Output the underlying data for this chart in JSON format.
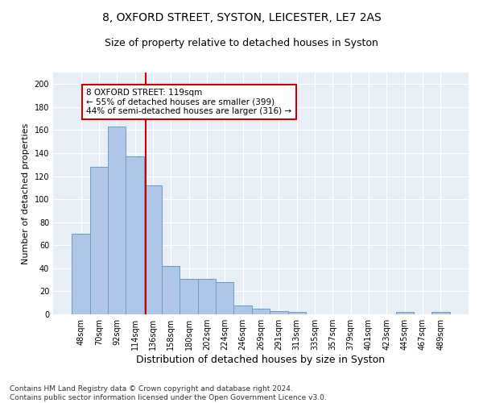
{
  "title1": "8, OXFORD STREET, SYSTON, LEICESTER, LE7 2AS",
  "title2": "Size of property relative to detached houses in Syston",
  "xlabel": "Distribution of detached houses by size in Syston",
  "ylabel": "Number of detached properties",
  "bar_labels": [
    "48sqm",
    "70sqm",
    "92sqm",
    "114sqm",
    "136sqm",
    "158sqm",
    "180sqm",
    "202sqm",
    "224sqm",
    "246sqm",
    "269sqm",
    "291sqm",
    "313sqm",
    "335sqm",
    "357sqm",
    "379sqm",
    "401sqm",
    "423sqm",
    "445sqm",
    "467sqm",
    "489sqm"
  ],
  "bar_values": [
    70,
    128,
    163,
    137,
    112,
    42,
    31,
    31,
    28,
    8,
    5,
    3,
    2,
    0,
    0,
    0,
    0,
    0,
    2,
    0,
    2
  ],
  "bar_color": "#aec7e8",
  "bar_edge_color": "#6a9ec5",
  "vline_x": 3.62,
  "vline_color": "#cc0000",
  "annotation_text": "8 OXFORD STREET: 119sqm\n← 55% of detached houses are smaller (399)\n44% of semi-detached houses are larger (316) →",
  "annotation_box_color": "white",
  "annotation_box_edge": "#cc0000",
  "ylim": [
    0,
    210
  ],
  "yticks": [
    0,
    20,
    40,
    60,
    80,
    100,
    120,
    140,
    160,
    180,
    200
  ],
  "background_color": "#e8eef6",
  "footer": "Contains HM Land Registry data © Crown copyright and database right 2024.\nContains public sector information licensed under the Open Government Licence v3.0.",
  "title1_fontsize": 10,
  "title2_fontsize": 9,
  "xlabel_fontsize": 9,
  "ylabel_fontsize": 8,
  "tick_fontsize": 7,
  "footer_fontsize": 6.5,
  "annot_fontsize": 7.5
}
